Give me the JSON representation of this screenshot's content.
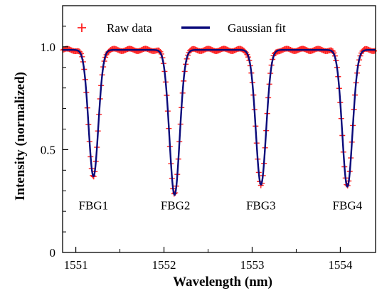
{
  "chart_data": {
    "type": "line",
    "xlabel": "Wavelength (nm)",
    "ylabel": "Intensity (normalized)",
    "xlim": [
      1550.85,
      1554.4
    ],
    "ylim": [
      0,
      1.2
    ],
    "xticks": [
      1551,
      1552,
      1553,
      1554
    ],
    "xtick_labels": [
      "1551",
      "1552",
      "1553",
      "1554"
    ],
    "yticks": [
      0,
      0.5,
      1.0
    ],
    "ytick_labels": [
      "0",
      "0.5",
      "1.0"
    ],
    "grid": false,
    "legend_position": "top",
    "baseline": 0.985,
    "colors": {
      "raw": "#ff2020",
      "fit": "#0a0a7a"
    },
    "series": [
      {
        "name": "Raw data",
        "marker": "+",
        "color": "#ff2020"
      },
      {
        "name": "Gaussian fit",
        "style": "line",
        "color": "#0a0a7a"
      }
    ],
    "dips": [
      {
        "label": "FBG1",
        "center": 1551.2,
        "min": 0.37,
        "sigma": 0.055
      },
      {
        "label": "FBG2",
        "center": 1552.12,
        "min": 0.28,
        "sigma": 0.058
      },
      {
        "label": "FBG3",
        "center": 1553.1,
        "min": 0.33,
        "sigma": 0.058
      },
      {
        "label": "FBG4",
        "center": 1554.08,
        "min": 0.32,
        "sigma": 0.058
      }
    ],
    "annotations": [
      {
        "text": "FBG1",
        "x": 1551.2,
        "y": 0.23
      },
      {
        "text": "FBG2",
        "x": 1552.13,
        "y": 0.23
      },
      {
        "text": "FBG3",
        "x": 1553.1,
        "y": 0.23
      },
      {
        "text": "FBG4",
        "x": 1554.08,
        "y": 0.23
      }
    ]
  }
}
